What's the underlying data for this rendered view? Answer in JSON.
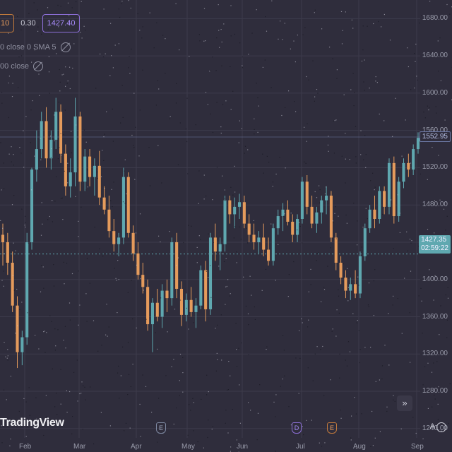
{
  "legend": {
    "row1": {
      "open_value": "10",
      "mid_value": "0.30",
      "price_value": "1427.40"
    },
    "row2": {
      "text": "0 close 0 SMA 5"
    },
    "row3": {
      "text": "00 close"
    }
  },
  "price_axis": {
    "labels": [
      "1680.00",
      "1640.00",
      "1600.00",
      "1560.00",
      "1520.00",
      "1480.00",
      "1440.00",
      "1400.00",
      "1360.00",
      "1320.00",
      "1280.00",
      "1240.00"
    ],
    "current_price": "1427.35",
    "countdown": "02:59:22",
    "high_price": "1552.95"
  },
  "time_axis": {
    "months": [
      "Feb",
      "Mar",
      "Apr",
      "May",
      "Jun",
      "Jul",
      "Aug",
      "Sep"
    ]
  },
  "branding": {
    "logo": "TradingView"
  },
  "controls": {
    "auto_label": "A",
    "log_label": "L",
    "scroll_glyph": "»"
  },
  "events": {
    "earnings_glyph": "E",
    "dividend_glyph": "D"
  },
  "colors": {
    "up": "#5fa8b0",
    "down": "#e59b5c",
    "background": "#2f2d3c",
    "grid": "#3d3b4b"
  },
  "chart_data": {
    "type": "candlestick",
    "ylim": [
      1230,
      1700
    ],
    "candles": [
      {
        "o": 1448,
        "h": 1460,
        "l": 1415,
        "c": 1440
      },
      {
        "o": 1440,
        "h": 1450,
        "l": 1405,
        "c": 1418
      },
      {
        "o": 1418,
        "h": 1430,
        "l": 1365,
        "c": 1372
      },
      {
        "o": 1372,
        "h": 1382,
        "l": 1305,
        "c": 1322
      },
      {
        "o": 1322,
        "h": 1345,
        "l": 1308,
        "c": 1338
      },
      {
        "o": 1338,
        "h": 1450,
        "l": 1330,
        "c": 1440
      },
      {
        "o": 1440,
        "h": 1520,
        "l": 1432,
        "c": 1518
      },
      {
        "o": 1518,
        "h": 1560,
        "l": 1505,
        "c": 1540
      },
      {
        "o": 1540,
        "h": 1580,
        "l": 1530,
        "c": 1570
      },
      {
        "o": 1570,
        "h": 1585,
        "l": 1520,
        "c": 1530
      },
      {
        "o": 1530,
        "h": 1560,
        "l": 1518,
        "c": 1550
      },
      {
        "o": 1550,
        "h": 1595,
        "l": 1540,
        "c": 1580
      },
      {
        "o": 1580,
        "h": 1588,
        "l": 1525,
        "c": 1535
      },
      {
        "o": 1535,
        "h": 1545,
        "l": 1490,
        "c": 1500
      },
      {
        "o": 1500,
        "h": 1530,
        "l": 1488,
        "c": 1515
      },
      {
        "o": 1515,
        "h": 1595,
        "l": 1500,
        "c": 1575
      },
      {
        "o": 1575,
        "h": 1580,
        "l": 1495,
        "c": 1505
      },
      {
        "o": 1505,
        "h": 1540,
        "l": 1495,
        "c": 1532
      },
      {
        "o": 1532,
        "h": 1540,
        "l": 1500,
        "c": 1510
      },
      {
        "o": 1510,
        "h": 1530,
        "l": 1490,
        "c": 1522
      },
      {
        "o": 1522,
        "h": 1538,
        "l": 1480,
        "c": 1488
      },
      {
        "o": 1488,
        "h": 1500,
        "l": 1470,
        "c": 1475
      },
      {
        "o": 1475,
        "h": 1490,
        "l": 1445,
        "c": 1452
      },
      {
        "o": 1452,
        "h": 1465,
        "l": 1430,
        "c": 1438
      },
      {
        "o": 1438,
        "h": 1450,
        "l": 1425,
        "c": 1445
      },
      {
        "o": 1445,
        "h": 1520,
        "l": 1438,
        "c": 1510
      },
      {
        "o": 1510,
        "h": 1515,
        "l": 1445,
        "c": 1450
      },
      {
        "o": 1450,
        "h": 1458,
        "l": 1420,
        "c": 1428
      },
      {
        "o": 1428,
        "h": 1440,
        "l": 1400,
        "c": 1405
      },
      {
        "o": 1405,
        "h": 1418,
        "l": 1385,
        "c": 1392
      },
      {
        "o": 1392,
        "h": 1400,
        "l": 1345,
        "c": 1352
      },
      {
        "o": 1352,
        "h": 1380,
        "l": 1322,
        "c": 1375
      },
      {
        "o": 1375,
        "h": 1390,
        "l": 1355,
        "c": 1360
      },
      {
        "o": 1360,
        "h": 1395,
        "l": 1348,
        "c": 1388
      },
      {
        "o": 1388,
        "h": 1400,
        "l": 1365,
        "c": 1380
      },
      {
        "o": 1380,
        "h": 1445,
        "l": 1372,
        "c": 1440
      },
      {
        "o": 1440,
        "h": 1450,
        "l": 1380,
        "c": 1390
      },
      {
        "o": 1390,
        "h": 1398,
        "l": 1350,
        "c": 1362
      },
      {
        "o": 1362,
        "h": 1385,
        "l": 1355,
        "c": 1378
      },
      {
        "o": 1378,
        "h": 1392,
        "l": 1360,
        "c": 1365
      },
      {
        "o": 1365,
        "h": 1380,
        "l": 1348,
        "c": 1372
      },
      {
        "o": 1372,
        "h": 1415,
        "l": 1368,
        "c": 1410
      },
      {
        "o": 1410,
        "h": 1420,
        "l": 1355,
        "c": 1368
      },
      {
        "o": 1368,
        "h": 1450,
        "l": 1362,
        "c": 1445
      },
      {
        "o": 1445,
        "h": 1460,
        "l": 1420,
        "c": 1430
      },
      {
        "o": 1430,
        "h": 1445,
        "l": 1410,
        "c": 1438
      },
      {
        "o": 1438,
        "h": 1490,
        "l": 1430,
        "c": 1485
      },
      {
        "o": 1485,
        "h": 1490,
        "l": 1460,
        "c": 1470
      },
      {
        "o": 1470,
        "h": 1488,
        "l": 1455,
        "c": 1478
      },
      {
        "o": 1478,
        "h": 1492,
        "l": 1465,
        "c": 1483
      },
      {
        "o": 1483,
        "h": 1490,
        "l": 1455,
        "c": 1460
      },
      {
        "o": 1460,
        "h": 1470,
        "l": 1440,
        "c": 1448
      },
      {
        "o": 1448,
        "h": 1460,
        "l": 1432,
        "c": 1440
      },
      {
        "o": 1440,
        "h": 1452,
        "l": 1428,
        "c": 1445
      },
      {
        "o": 1445,
        "h": 1460,
        "l": 1425,
        "c": 1432
      },
      {
        "o": 1432,
        "h": 1445,
        "l": 1415,
        "c": 1420
      },
      {
        "o": 1420,
        "h": 1460,
        "l": 1415,
        "c": 1455
      },
      {
        "o": 1455,
        "h": 1475,
        "l": 1448,
        "c": 1468
      },
      {
        "o": 1468,
        "h": 1482,
        "l": 1452,
        "c": 1475
      },
      {
        "o": 1475,
        "h": 1485,
        "l": 1458,
        "c": 1462
      },
      {
        "o": 1462,
        "h": 1470,
        "l": 1440,
        "c": 1448
      },
      {
        "o": 1448,
        "h": 1470,
        "l": 1440,
        "c": 1465
      },
      {
        "o": 1465,
        "h": 1510,
        "l": 1460,
        "c": 1505
      },
      {
        "o": 1505,
        "h": 1512,
        "l": 1470,
        "c": 1478
      },
      {
        "o": 1478,
        "h": 1490,
        "l": 1455,
        "c": 1460
      },
      {
        "o": 1460,
        "h": 1478,
        "l": 1450,
        "c": 1472
      },
      {
        "o": 1472,
        "h": 1490,
        "l": 1460,
        "c": 1485
      },
      {
        "o": 1485,
        "h": 1500,
        "l": 1470,
        "c": 1490
      },
      {
        "o": 1490,
        "h": 1495,
        "l": 1440,
        "c": 1445
      },
      {
        "o": 1445,
        "h": 1450,
        "l": 1410,
        "c": 1418
      },
      {
        "o": 1418,
        "h": 1425,
        "l": 1395,
        "c": 1402
      },
      {
        "o": 1402,
        "h": 1410,
        "l": 1380,
        "c": 1388
      },
      {
        "o": 1388,
        "h": 1402,
        "l": 1378,
        "c": 1395
      },
      {
        "o": 1395,
        "h": 1410,
        "l": 1380,
        "c": 1385
      },
      {
        "o": 1385,
        "h": 1430,
        "l": 1380,
        "c": 1425
      },
      {
        "o": 1425,
        "h": 1460,
        "l": 1420,
        "c": 1455
      },
      {
        "o": 1455,
        "h": 1480,
        "l": 1450,
        "c": 1475
      },
      {
        "o": 1475,
        "h": 1490,
        "l": 1455,
        "c": 1465
      },
      {
        "o": 1465,
        "h": 1500,
        "l": 1460,
        "c": 1495
      },
      {
        "o": 1495,
        "h": 1500,
        "l": 1470,
        "c": 1478
      },
      {
        "o": 1478,
        "h": 1530,
        "l": 1470,
        "c": 1525
      },
      {
        "o": 1525,
        "h": 1532,
        "l": 1460,
        "c": 1468
      },
      {
        "o": 1468,
        "h": 1510,
        "l": 1462,
        "c": 1505
      },
      {
        "o": 1505,
        "h": 1530,
        "l": 1498,
        "c": 1525
      },
      {
        "o": 1525,
        "h": 1535,
        "l": 1510,
        "c": 1518
      },
      {
        "o": 1518,
        "h": 1545,
        "l": 1512,
        "c": 1540
      },
      {
        "o": 1540,
        "h": 1558,
        "l": 1535,
        "c": 1552
      }
    ],
    "current_price": 1427.35,
    "high_marker": 1552.95
  }
}
